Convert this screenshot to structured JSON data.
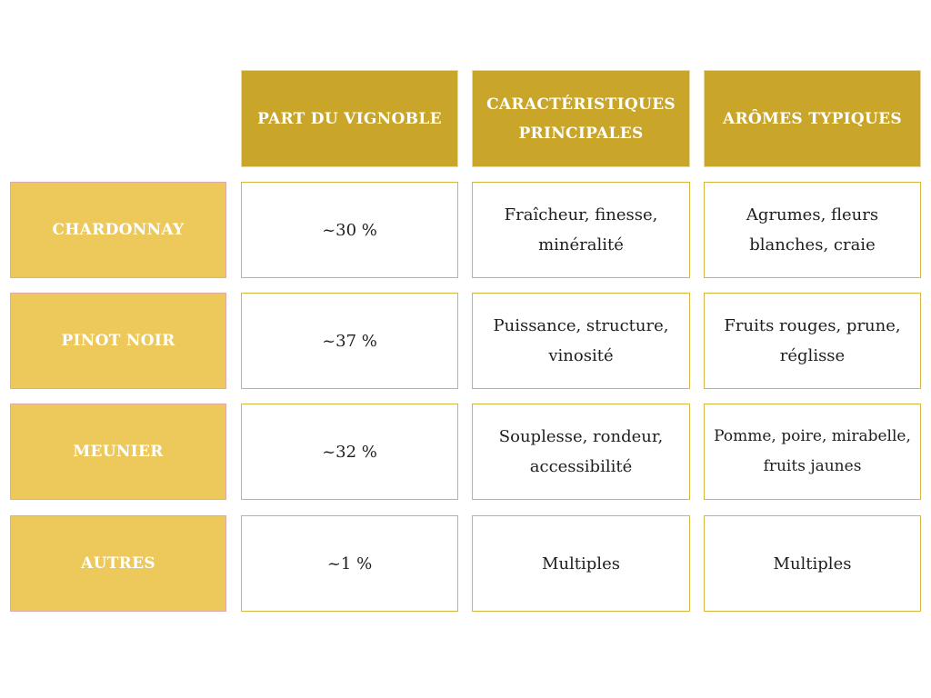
{
  "colors": {
    "column_header_bg": "#c9a62a",
    "row_header_bg": "#edc95c",
    "cell_border": "#d7b545",
    "header_text": "#ffffff",
    "body_text": "#1e1e1e"
  },
  "table": {
    "columns": [
      "PART DU VIGNOBLE",
      "CARACTÉRISTIQUES PRINCIPALES",
      "ARÔMES TYPIQUES"
    ],
    "rows": [
      {
        "label": "CHARDONNAY",
        "share": "~30 %",
        "characteristics": "Fraîcheur, finesse, minéralité",
        "aromas": "Agrumes, fleurs blanches, craie"
      },
      {
        "label": "PINOT NOIR",
        "share": "~37 %",
        "characteristics": "Puissance, structure, vinosité",
        "aromas": "Fruits rouges, prune, réglisse"
      },
      {
        "label": "MEUNIER",
        "share": "~32 %",
        "characteristics": "Souplesse, rondeur, accessibilité",
        "aromas": "Pomme, poire, mirabelle, fruits jaunes"
      },
      {
        "label": "AUTRES",
        "share": "~1 %",
        "characteristics": "Multiples",
        "aromas": "Multiples"
      }
    ]
  }
}
